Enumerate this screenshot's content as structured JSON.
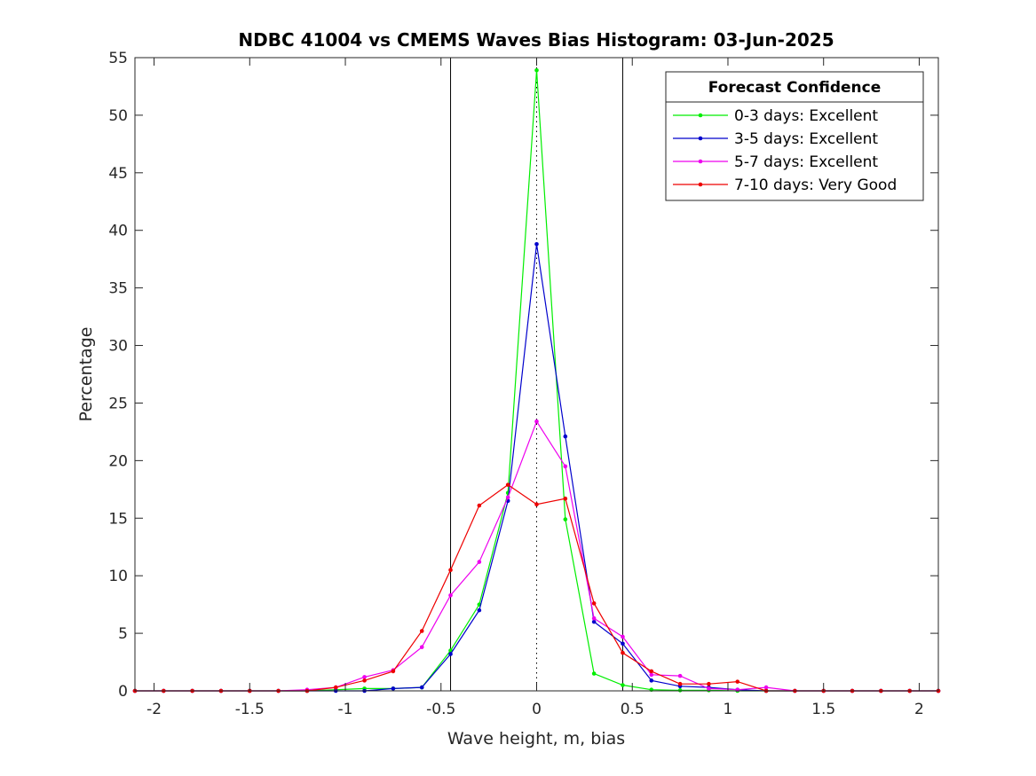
{
  "chart_data": {
    "type": "line",
    "title": "NDBC 41004 vs CMEMS Waves Bias Histogram: 03-Jun-2025",
    "xlabel": "Wave height, m, bias",
    "ylabel": "Percentage",
    "xlim": [
      -2.1,
      2.1
    ],
    "ylim": [
      0,
      55
    ],
    "xticks": [
      -2,
      -1.5,
      -1,
      -0.5,
      0,
      0.5,
      1,
      1.5,
      2
    ],
    "xtick_labels": [
      "-2",
      "-1.5",
      "-1",
      "-0.5",
      "0",
      "0.5",
      "1",
      "1.5",
      "2"
    ],
    "yticks": [
      0,
      5,
      10,
      15,
      20,
      25,
      30,
      35,
      40,
      45,
      50,
      55
    ],
    "ytick_labels": [
      "0",
      "5",
      "10",
      "15",
      "20",
      "25",
      "30",
      "35",
      "40",
      "45",
      "50",
      "55"
    ],
    "grid": false,
    "legend": {
      "title": "Forecast Confidence",
      "position": "top-right"
    },
    "reference_lines": {
      "solid_vertical": [
        -0.45,
        0.45
      ],
      "dotted_vertical": [
        0
      ]
    },
    "x": [
      -2.1,
      -1.95,
      -1.8,
      -1.65,
      -1.5,
      -1.35,
      -1.2,
      -1.05,
      -0.9,
      -0.75,
      -0.6,
      -0.45,
      -0.3,
      -0.15,
      0,
      0.15,
      0.3,
      0.45,
      0.6,
      0.75,
      0.9,
      1.05,
      1.2,
      1.35,
      1.5,
      1.65,
      1.8,
      1.95,
      2.1
    ],
    "series": [
      {
        "name": "0-3 days: Excellent",
        "color": "#00ee00",
        "values": [
          0,
          0,
          0,
          0,
          0,
          0,
          0,
          0.1,
          0.2,
          0.2,
          0.3,
          3.5,
          7.5,
          17.2,
          53.9,
          14.9,
          1.5,
          0.5,
          0.1,
          0.05,
          0.05,
          0,
          0,
          0,
          0,
          0,
          0,
          0,
          0
        ]
      },
      {
        "name": "3-5 days: Excellent",
        "color": "#0000cc",
        "values": [
          0,
          0,
          0,
          0,
          0,
          0,
          0,
          0,
          0,
          0.2,
          0.3,
          3.2,
          7.0,
          16.5,
          38.8,
          22.1,
          6.0,
          4.1,
          0.9,
          0.4,
          0.3,
          0.1,
          0,
          0,
          0,
          0,
          0,
          0,
          0
        ]
      },
      {
        "name": "5-7 days: Excellent",
        "color": "#ee00ee",
        "values": [
          0,
          0,
          0,
          0,
          0,
          0,
          0.1,
          0.3,
          1.2,
          1.8,
          3.8,
          8.3,
          11.2,
          16.8,
          23.4,
          19.5,
          6.3,
          4.7,
          1.4,
          1.3,
          0.2,
          0.1,
          0.3,
          0,
          0,
          0,
          0,
          0,
          0
        ]
      },
      {
        "name": "7-10 days: Very Good",
        "color": "#ee0000",
        "values": [
          0,
          0,
          0,
          0,
          0,
          0,
          0,
          0.3,
          0.9,
          1.7,
          5.2,
          10.5,
          16.1,
          17.9,
          16.2,
          16.7,
          7.6,
          3.3,
          1.7,
          0.6,
          0.6,
          0.8,
          0,
          0,
          0,
          0,
          0,
          0,
          0
        ]
      }
    ]
  }
}
